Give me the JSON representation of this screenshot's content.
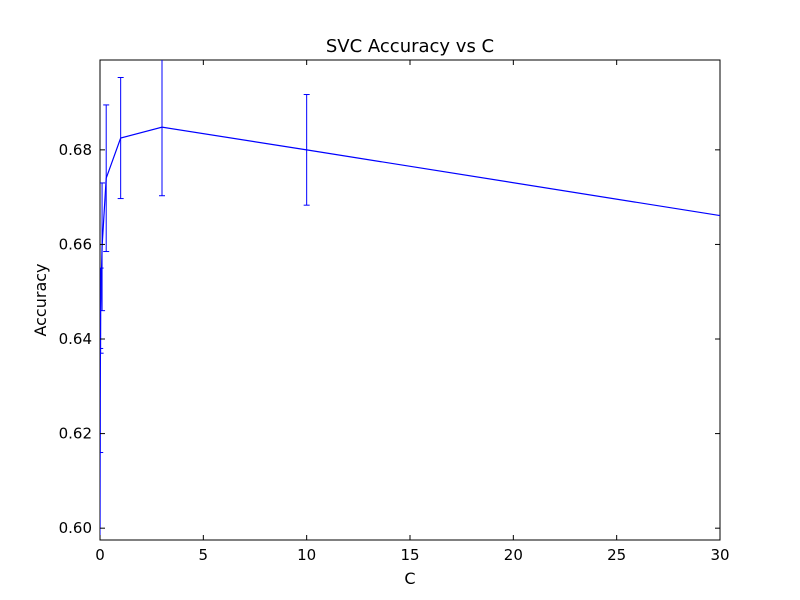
{
  "chart_data": {
    "type": "line",
    "title": "SVC Accuracy vs C",
    "xlabel": "C",
    "ylabel": "Accuracy",
    "xlim": [
      0,
      30
    ],
    "ylim": [
      0.5975,
      0.699
    ],
    "x_ticks": [
      0,
      5,
      10,
      15,
      20,
      25,
      30
    ],
    "y_ticks": [
      0.6,
      0.62,
      0.64,
      0.66,
      0.68
    ],
    "x_tick_labels": [
      "0",
      "5",
      "10",
      "15",
      "20",
      "25",
      "30"
    ],
    "y_tick_labels": [
      "0.60",
      "0.62",
      "0.64",
      "0.66",
      "0.68"
    ],
    "grid": false,
    "series": [
      {
        "color": "#0000ff",
        "x": [
          0.001,
          0.01,
          0.03,
          0.1,
          0.3,
          1,
          3,
          10,
          30
        ],
        "y": [
          0.6,
          0.627,
          0.646,
          0.6595,
          0.674,
          0.6825,
          0.6848,
          0.68,
          0.6661
        ],
        "yerr": [
          0.016,
          0.011,
          0.009,
          0.0135,
          0.0155,
          0.0128,
          0.0145,
          0.0117,
          0.0
        ]
      }
    ]
  }
}
